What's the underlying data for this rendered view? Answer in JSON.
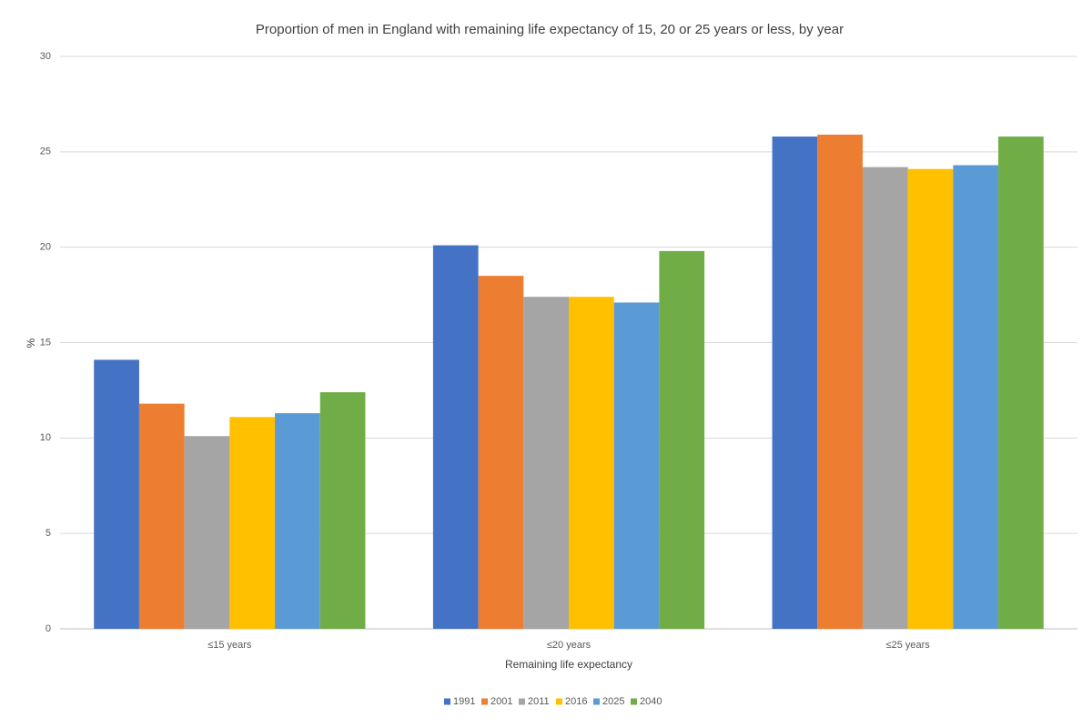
{
  "chart_data": {
    "type": "bar",
    "title": "Proportion of men in England with remaining life expectancy of 15, 20 or 25 years or less, by year",
    "x_label": "Remaining life expectancy",
    "y_label": "%",
    "categories": [
      "≤15 years",
      "≤20 years",
      "≤25 years"
    ],
    "series": [
      {
        "name": "1991",
        "color": "#4472c4",
        "values": [
          14.1,
          20.1,
          25.8
        ]
      },
      {
        "name": "2001",
        "color": "#ed7d31",
        "values": [
          11.8,
          18.5,
          25.9
        ]
      },
      {
        "name": "2011",
        "color": "#a5a5a5",
        "values": [
          10.1,
          17.4,
          24.2
        ]
      },
      {
        "name": "2016",
        "color": "#ffc000",
        "values": [
          11.1,
          17.4,
          24.1
        ]
      },
      {
        "name": "2025",
        "color": "#5b9bd5",
        "values": [
          11.3,
          17.1,
          24.3
        ]
      },
      {
        "name": "2040",
        "color": "#70ad47",
        "values": [
          12.4,
          19.8,
          25.8
        ]
      }
    ],
    "ylim": [
      0,
      30
    ],
    "yticks": [
      0,
      5,
      10,
      15,
      20,
      25,
      30
    ],
    "grid": true,
    "legend": "bottom"
  }
}
